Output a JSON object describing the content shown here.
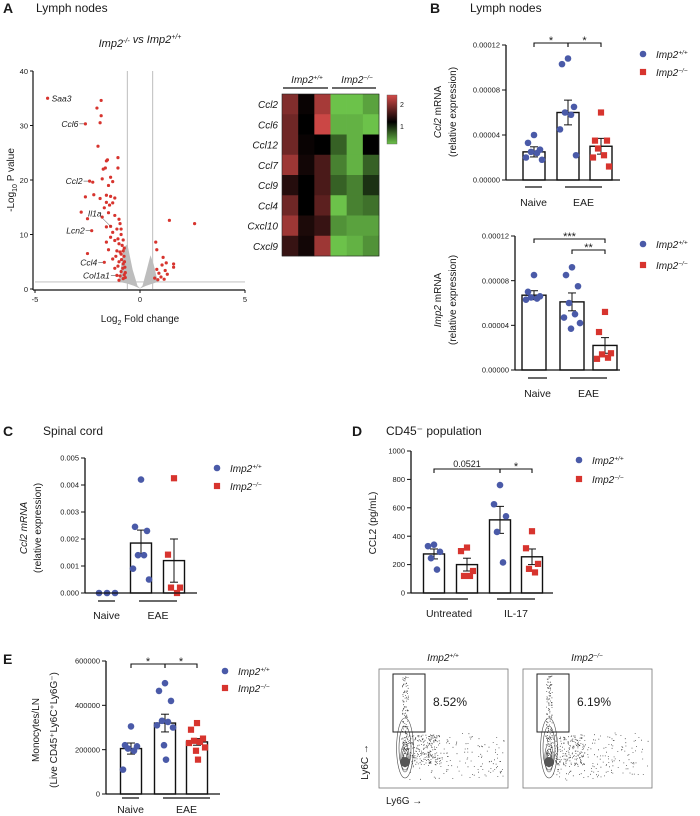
{
  "panels": {
    "A": {
      "letter": "A",
      "title": "Lymph nodes"
    },
    "B": {
      "letter": "B",
      "title": "Lymph nodes"
    },
    "C": {
      "letter": "C",
      "title": "Spinal cord"
    },
    "D": {
      "letter": "D",
      "title": "CD45⁻ population"
    },
    "E": {
      "letter": "E",
      "title": ""
    }
  },
  "genotypes": {
    "wt": {
      "base": "Imp2",
      "sup": "+/+"
    },
    "ko": {
      "base": "Imp2",
      "sup": "−/−"
    }
  },
  "colors": {
    "wt": "#4a5aa8",
    "ko": "#d7342e",
    "volcano_sig": "#d7342e",
    "volcano_ns": "#bdbdbd",
    "heat_high": "#d44a48",
    "heat_mid": "#000000",
    "heat_low": "#6cc24a"
  },
  "chart_data": [
    {
      "type": "scatter",
      "panel": "A",
      "subtitle": [
        {
          "t": "Imp2",
          "sup": "-/-"
        },
        {
          "t": " vs Imp2",
          "sup": "+/+"
        }
      ],
      "xlabel": {
        "pre": "Log",
        "sub": "2",
        "post": " Fold change"
      },
      "ylabel": {
        "pre": "-Log",
        "sub": "10",
        "post": " P value"
      },
      "xlim": [
        -5,
        5
      ],
      "ylim": [
        0,
        40
      ],
      "xticks": [
        "-5",
        "0",
        "5"
      ],
      "yticks": [
        "0",
        "10",
        "20",
        "30",
        "40"
      ],
      "thresholds": {
        "log2fc": [
          -0.6,
          0.6
        ],
        "neglog10p": 1.3
      },
      "labeled_genes": [
        {
          "gene": "Saa3",
          "x": -4.4,
          "y": 35.0,
          "side": "right"
        },
        {
          "gene": "Ccl6",
          "x": -2.6,
          "y": 30.3,
          "side": "left"
        },
        {
          "gene": "Ccl2",
          "x": -2.4,
          "y": 19.8,
          "side": "left"
        },
        {
          "gene": "Il1a",
          "x": -1.4,
          "y": 11.5,
          "side": "above"
        },
        {
          "gene": "Lcn2",
          "x": -2.3,
          "y": 10.7,
          "side": "left"
        },
        {
          "gene": "Ccl4",
          "x": -1.7,
          "y": 4.9,
          "side": "left"
        },
        {
          "gene": "Col1a1",
          "x": -1.1,
          "y": 2.5,
          "side": "left"
        }
      ],
      "significant_points": [
        [
          -1.85,
          34.6
        ],
        [
          -2.05,
          33.2
        ],
        [
          -1.85,
          31.8
        ],
        [
          -1.9,
          30.5
        ],
        [
          -2.0,
          26.2
        ],
        [
          -1.6,
          23.5
        ],
        [
          -1.55,
          23.7
        ],
        [
          -1.05,
          24.1
        ],
        [
          -1.75,
          22.0
        ],
        [
          -1.65,
          22.2
        ],
        [
          -1.05,
          22.2
        ],
        [
          -2.25,
          19.6
        ],
        [
          -1.8,
          20.2
        ],
        [
          -1.4,
          20.5
        ],
        [
          -1.3,
          19.7
        ],
        [
          -1.5,
          19.0
        ],
        [
          -2.6,
          16.9
        ],
        [
          -2.2,
          17.3
        ],
        [
          -1.9,
          16.6
        ],
        [
          -1.6,
          17.2
        ],
        [
          -1.4,
          17.0
        ],
        [
          -1.2,
          16.7
        ],
        [
          -1.6,
          15.9
        ],
        [
          -1.45,
          15.4
        ],
        [
          -1.3,
          15.8
        ],
        [
          -1.7,
          14.9
        ],
        [
          -2.8,
          14.1
        ],
        [
          -2.5,
          12.9
        ],
        [
          -1.8,
          13.2
        ],
        [
          -1.5,
          14.0
        ],
        [
          -1.2,
          13.5
        ],
        [
          -1.0,
          12.8
        ],
        [
          -1.6,
          11.4
        ],
        [
          -1.3,
          10.4
        ],
        [
          -1.1,
          11.0
        ],
        [
          -0.9,
          10.0
        ],
        [
          -1.4,
          9.5
        ],
        [
          -1.2,
          8.9
        ],
        [
          -1.0,
          8.3
        ],
        [
          -0.8,
          9.0
        ],
        [
          -1.6,
          8.6
        ],
        [
          -1.5,
          7.2
        ],
        [
          -1.1,
          7.0
        ],
        [
          -0.9,
          6.4
        ],
        [
          -0.75,
          7.5
        ],
        [
          -2.5,
          6.5
        ],
        [
          -1.3,
          5.5
        ],
        [
          -1.0,
          5.0
        ],
        [
          -0.8,
          4.6
        ],
        [
          -1.2,
          3.8
        ],
        [
          -0.9,
          3.2
        ],
        [
          -0.75,
          2.6
        ],
        [
          -0.8,
          1.9
        ],
        [
          -0.7,
          2.1
        ],
        [
          -1.0,
          1.6
        ],
        [
          -0.7,
          3.0
        ],
        [
          -0.72,
          4.0
        ],
        [
          -0.74,
          5.0
        ],
        [
          -0.76,
          6.0
        ],
        [
          -0.8,
          7.0
        ],
        [
          -0.85,
          8.0
        ],
        [
          -0.9,
          11.0
        ],
        [
          -0.95,
          12.0
        ],
        [
          -1.05,
          9.2
        ],
        [
          -0.95,
          6.8
        ],
        [
          -1.15,
          6.0
        ],
        [
          -0.88,
          5.4
        ],
        [
          -1.05,
          4.2
        ],
        [
          -0.82,
          3.8
        ],
        [
          -0.95,
          2.4
        ],
        [
          1.4,
          12.6
        ],
        [
          2.6,
          12.0
        ],
        [
          0.75,
          8.6
        ],
        [
          0.8,
          7.2
        ],
        [
          1.1,
          5.8
        ],
        [
          1.25,
          4.8
        ],
        [
          1.05,
          4.4
        ],
        [
          1.6,
          4.6
        ],
        [
          1.6,
          4.0
        ],
        [
          0.8,
          3.6
        ],
        [
          1.2,
          3.4
        ],
        [
          0.9,
          2.9
        ],
        [
          1.0,
          2.2
        ],
        [
          1.3,
          2.7
        ],
        [
          0.7,
          2.0
        ],
        [
          1.15,
          1.8
        ],
        [
          0.85,
          1.7
        ]
      ]
    },
    {
      "type": "heatmap",
      "panel": "A",
      "column_groups": [
        {
          "genotype": "wt",
          "columns": 3
        },
        {
          "genotype": "ko",
          "columns": 3
        }
      ],
      "rows": [
        "Ccl2",
        "Ccl6",
        "Ccl12",
        "Ccl7",
        "Ccl9",
        "Ccl4",
        "Cxcl10",
        "Cxcl9"
      ],
      "values": [
        [
          1.7,
          1.05,
          1.9,
          0.4,
          0.4,
          0.5
        ],
        [
          1.6,
          1.0,
          2.1,
          0.45,
          0.45,
          0.4
        ],
        [
          1.6,
          1.05,
          1.0,
          0.7,
          0.45,
          1.0
        ],
        [
          1.85,
          1.1,
          1.4,
          0.6,
          0.45,
          0.7
        ],
        [
          1.2,
          1.0,
          1.4,
          0.7,
          0.6,
          0.85
        ],
        [
          1.6,
          1.0,
          1.5,
          0.4,
          0.6,
          0.65
        ],
        [
          1.85,
          1.15,
          1.3,
          0.55,
          0.5,
          0.5
        ],
        [
          1.3,
          1.1,
          1.85,
          0.4,
          0.45,
          0.55
        ]
      ],
      "colorbar_ticks": [
        "2",
        "1"
      ]
    },
    {
      "type": "bar",
      "panel": "B",
      "ylabel_italic": "Ccl2",
      "ylabel": " mRNA",
      "ylabel2": "(relative expression)",
      "ylim": [
        0,
        0.00012
      ],
      "yticks": [
        "0.00000",
        "0.00004",
        "0.00008",
        "0.00012"
      ],
      "groups": [
        {
          "label": "Naive",
          "bars": [
            0
          ]
        },
        {
          "label": "EAE",
          "bars": [
            1,
            2
          ]
        }
      ],
      "bars": [
        {
          "genotype": "wt",
          "mean": 2.5e-05,
          "sem": 4.5e-06,
          "points": [
            4e-05,
            3.3e-05,
            2.7e-05,
            2.5e-05,
            2.4e-05,
            2e-05,
            1.8e-05
          ]
        },
        {
          "genotype": "wt",
          "mean": 6e-05,
          "sem": 1.1e-05,
          "points": [
            0.000108,
            0.000103,
            6.5e-05,
            6e-05,
            5.8e-05,
            4.5e-05,
            2.2e-05
          ]
        },
        {
          "genotype": "ko",
          "mean": 3e-05,
          "sem": 7e-06,
          "points": [
            6e-05,
            3.5e-05,
            3.5e-05,
            2.8e-05,
            2.2e-05,
            2e-05,
            1.2e-05
          ]
        }
      ],
      "significance": [
        {
          "from": 0,
          "to": 1,
          "label": "*"
        },
        {
          "from": 1,
          "to": 2,
          "label": "*"
        }
      ],
      "legend": [
        "wt",
        "ko"
      ]
    },
    {
      "type": "bar",
      "panel": "B",
      "ylabel_italic": "Imp2",
      "ylabel": " mRNA",
      "ylabel2": "(relative expression)",
      "ylim": [
        0,
        0.00012
      ],
      "yticks": [
        "0.00000",
        "0.00004",
        "0.00008",
        "0.00012"
      ],
      "groups": [
        {
          "label": "Naive",
          "bars": [
            0
          ]
        },
        {
          "label": "EAE",
          "bars": [
            1,
            2
          ]
        }
      ],
      "bars": [
        {
          "genotype": "wt",
          "mean": 6.7e-05,
          "sem": 4e-06,
          "points": [
            8.5e-05,
            7e-05,
            6.6e-05,
            6.5e-05,
            6.4e-05,
            6.3e-05
          ]
        },
        {
          "genotype": "wt",
          "mean": 6.1e-05,
          "sem": 8e-06,
          "points": [
            9.2e-05,
            8.5e-05,
            7.5e-05,
            6e-05,
            5e-05,
            4.7e-05,
            4.2e-05,
            3.7e-05
          ]
        },
        {
          "genotype": "ko",
          "mean": 2.2e-05,
          "sem": 7e-06,
          "points": [
            5.2e-05,
            3.4e-05,
            1.5e-05,
            1.4e-05,
            1.1e-05,
            1e-05
          ]
        }
      ],
      "significance": [
        {
          "from": 0,
          "to": 2,
          "label": "***"
        },
        {
          "from": 1,
          "to": 2,
          "label": "**"
        }
      ],
      "legend": [
        "wt",
        "ko"
      ]
    },
    {
      "type": "bar",
      "panel": "C",
      "ylabel_italic": "Ccl2 mRNA",
      "ylabel": "",
      "ylabel2": "(relative expression)",
      "ylim": [
        0,
        0.005
      ],
      "yticks": [
        "0.000",
        "0.001",
        "0.002",
        "0.003",
        "0.004",
        "0.005"
      ],
      "groups": [
        {
          "label": "Naive",
          "bars": [
            0
          ]
        },
        {
          "label": "EAE",
          "bars": [
            1,
            2
          ]
        }
      ],
      "bars": [
        {
          "genotype": "wt",
          "mean": 0,
          "sem": 0,
          "points": [
            0,
            0,
            0
          ]
        },
        {
          "genotype": "wt",
          "mean": 0.00185,
          "sem": 0.00048,
          "points": [
            0.0042,
            0.00245,
            0.0023,
            0.0014,
            0.0014,
            0.0009,
            0.0005
          ]
        },
        {
          "genotype": "ko",
          "mean": 0.0012,
          "sem": 0.0008,
          "points": [
            0.00425,
            0.00142,
            0.0002,
            0.0002,
            0
          ]
        }
      ],
      "significance": [],
      "legend": [
        "wt",
        "ko"
      ]
    },
    {
      "type": "bar",
      "panel": "D",
      "ylabel_italic": "",
      "ylabel": "CCL2 (pg/mL)",
      "ylabel2": "",
      "ylim": [
        0,
        1000
      ],
      "yticks": [
        "0",
        "200",
        "400",
        "600",
        "800",
        "1000"
      ],
      "groups": [
        {
          "label": "Untreated",
          "bars": [
            0,
            1
          ]
        },
        {
          "label": "IL-17",
          "bars": [
            2,
            3
          ]
        }
      ],
      "bars": [
        {
          "genotype": "wt",
          "mean": 275,
          "sem": 35,
          "points": [
            340,
            330,
            290,
            245,
            165
          ]
        },
        {
          "genotype": "ko",
          "mean": 200,
          "sem": 45,
          "points": [
            320,
            295,
            155,
            120,
            120
          ]
        },
        {
          "genotype": "wt",
          "mean": 515,
          "sem": 95,
          "points": [
            760,
            625,
            540,
            430,
            215
          ]
        },
        {
          "genotype": "ko",
          "mean": 255,
          "sem": 55,
          "points": [
            435,
            315,
            205,
            170,
            145
          ]
        }
      ],
      "significance": [
        {
          "from": 0,
          "to": 2,
          "label": "0.0521"
        },
        {
          "from": 2,
          "to": 3,
          "label": "*"
        }
      ],
      "legend": [
        "wt",
        "ko"
      ]
    },
    {
      "type": "bar",
      "panel": "E",
      "ylabel_italic": "",
      "ylabel": "Monocytes/LN",
      "ylabel2": "(Live CD45⁺Ly6C⁺Ly6G⁻)",
      "ylim": [
        0,
        600000
      ],
      "yticks": [
        "0",
        "200000",
        "400000",
        "600000"
      ],
      "groups": [
        {
          "label": "Naive",
          "bars": [
            0
          ]
        },
        {
          "label": "EAE",
          "bars": [
            1,
            2
          ]
        }
      ],
      "bars": [
        {
          "genotype": "wt",
          "mean": 205000,
          "sem": 25000,
          "points": [
            305000,
            220000,
            215000,
            205000,
            195000,
            110000
          ]
        },
        {
          "genotype": "wt",
          "mean": 320000,
          "sem": 40000,
          "points": [
            500000,
            465000,
            420000,
            330000,
            325000,
            310000,
            300000,
            220000,
            155000
          ]
        },
        {
          "genotype": "ko",
          "mean": 235000,
          "sem": 15000,
          "points": [
            320000,
            290000,
            250000,
            240000,
            235000,
            230000,
            210000,
            195000,
            155000
          ]
        }
      ],
      "significance": [
        {
          "from": 0,
          "to": 1,
          "label": "*"
        },
        {
          "from": 1,
          "to": 2,
          "label": "*"
        }
      ],
      "legend": [
        "wt",
        "ko"
      ]
    },
    {
      "type": "flow-cytometry",
      "panel": "E",
      "xlabel": "Ly6G →",
      "ylabel": "Ly6C →",
      "plots": [
        {
          "genotype": "wt",
          "gate_percent": "8.52%"
        },
        {
          "genotype": "ko",
          "gate_percent": "6.19%"
        }
      ]
    }
  ]
}
